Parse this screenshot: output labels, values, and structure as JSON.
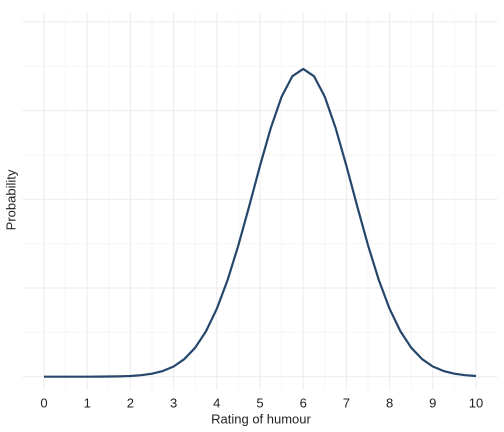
{
  "chart_data": {
    "type": "line",
    "x_label": "Rating of humour",
    "y_label": "Probability",
    "x": [
      0,
      0.25,
      0.5,
      0.75,
      1,
      1.25,
      1.5,
      1.75,
      2,
      2.25,
      2.5,
      2.75,
      3,
      3.25,
      3.5,
      3.75,
      4,
      4.25,
      4.5,
      4.75,
      5,
      5.25,
      5.5,
      5.75,
      6,
      6.25,
      6.5,
      6.75,
      7,
      7.25,
      7.5,
      7.75,
      8,
      8.25,
      8.5,
      8.75,
      9,
      9.25,
      9.5,
      9.75,
      10
    ],
    "values": [
      0,
      0,
      0,
      0,
      0,
      0.0001,
      0.0002,
      0.0004,
      0.0008,
      0.0017,
      0.0034,
      0.0064,
      0.0115,
      0.0199,
      0.0327,
      0.0512,
      0.0765,
      0.109,
      0.1482,
      0.1922,
      0.2377,
      0.2804,
      0.3156,
      0.3388,
      0.3469,
      0.3388,
      0.3156,
      0.2804,
      0.2377,
      0.1922,
      0.1482,
      0.109,
      0.0765,
      0.0512,
      0.0327,
      0.0199,
      0.0115,
      0.0064,
      0.0034,
      0.0017,
      0.0008
    ],
    "color": "#26476b",
    "xlim": [
      -0.5,
      10.5
    ],
    "xticks": [
      0,
      1,
      2,
      3,
      4,
      5,
      6,
      7,
      8,
      9,
      10
    ],
    "ylim": [
      -0.015,
      0.41
    ],
    "yticks": [
      0,
      0.1,
      0.2,
      0.3,
      0.4
    ],
    "grid": true
  }
}
